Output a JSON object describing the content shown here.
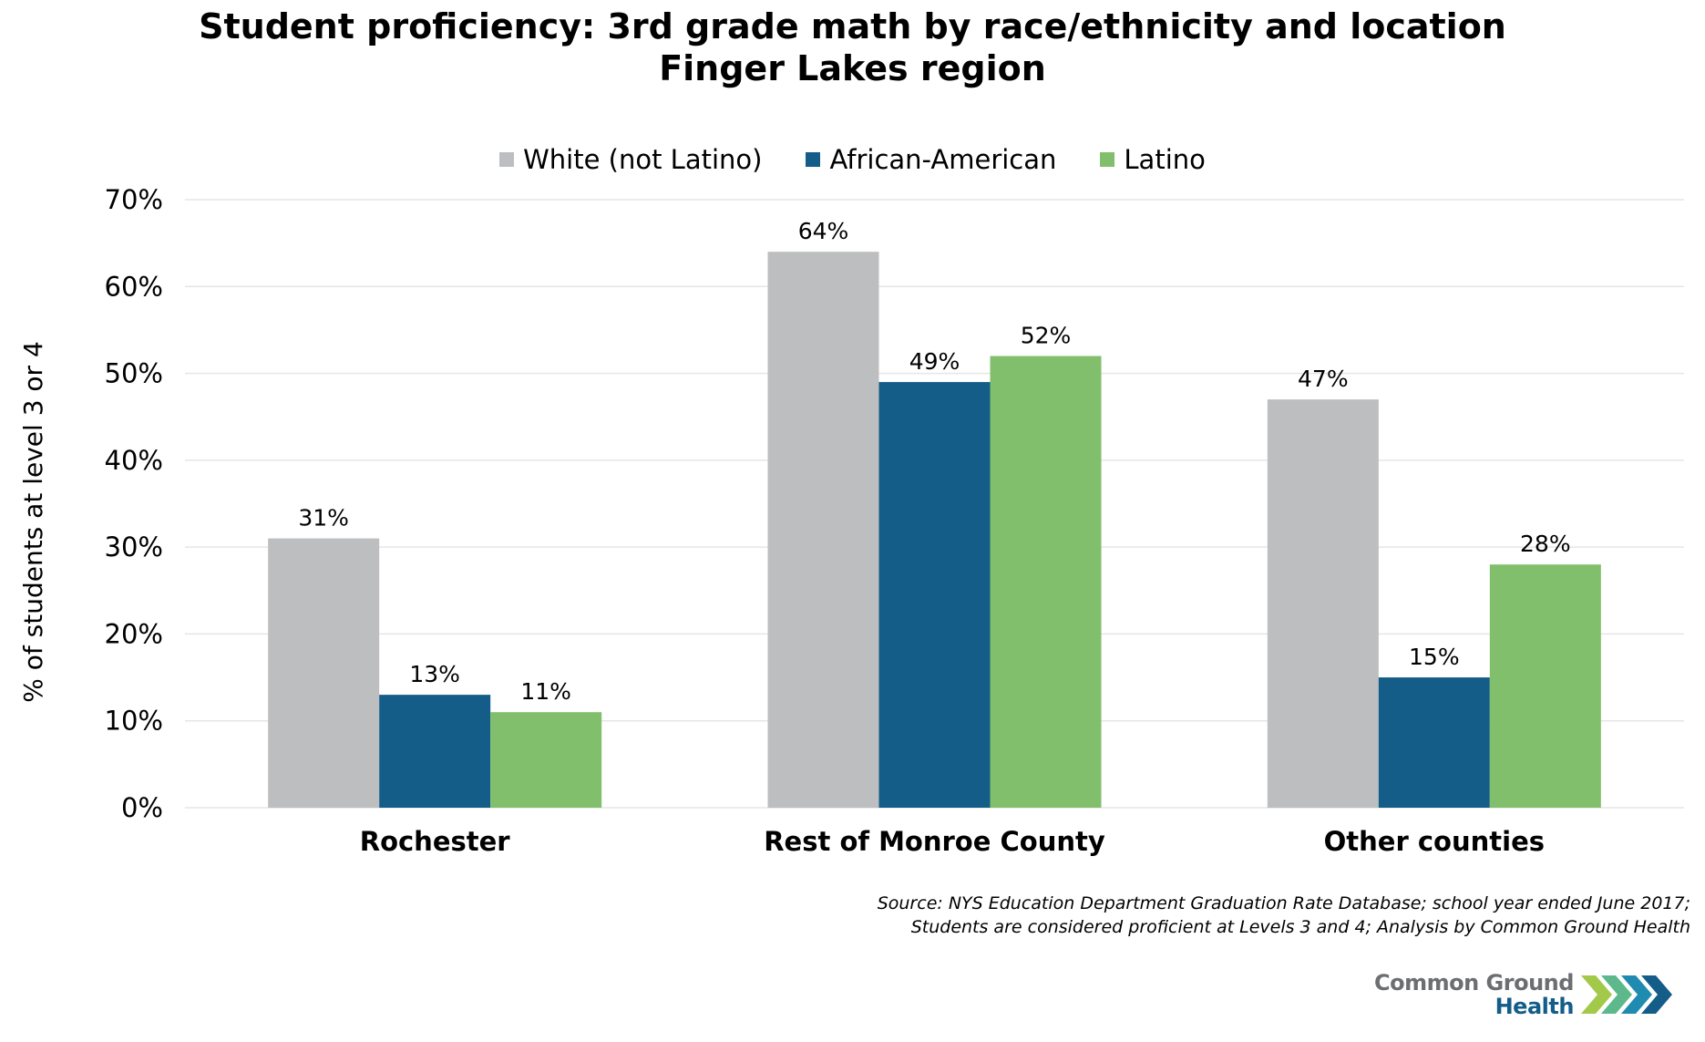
{
  "chart_data": {
    "type": "bar",
    "title": "Student proficiency: 3rd grade math by race/ethnicity and location",
    "subtitle": "Finger Lakes region",
    "xlabel": "",
    "ylabel": "% of students at level 3 or 4",
    "ylim": [
      0,
      70
    ],
    "yticks": [
      0,
      10,
      20,
      30,
      40,
      50,
      60,
      70
    ],
    "ytick_labels": [
      "0%",
      "10%",
      "20%",
      "30%",
      "40%",
      "50%",
      "60%",
      "70%"
    ],
    "grid": true,
    "legend_position": "top-center",
    "categories": [
      "Rochester",
      "Rest of Monroe County",
      "Other counties"
    ],
    "series": [
      {
        "name": "White (not Latino)",
        "color": "#bdbec0",
        "values": [
          31,
          64,
          47
        ],
        "labels": [
          "31%",
          "64%",
          "47%"
        ]
      },
      {
        "name": "African-American",
        "color": "#135d88",
        "values": [
          13,
          49,
          15
        ],
        "labels": [
          "13%",
          "49%",
          "15%"
        ]
      },
      {
        "name": "Latino",
        "color": "#82bf6c",
        "values": [
          11,
          52,
          28
        ],
        "labels": [
          "11%",
          "52%",
          "28%"
        ]
      }
    ],
    "source_note": [
      "Source: NYS Education Department Graduation Rate Database; school year ended June 2017;",
      "Students are considered proficient at Levels 3 and 4; Analysis by Common Ground Health"
    ]
  },
  "logo": {
    "line1": "Common Ground",
    "line2": "Health",
    "icon": "chevrons-icon",
    "colors": [
      "#a3c94a",
      "#5db88c",
      "#1f8bb0",
      "#135d88"
    ]
  }
}
